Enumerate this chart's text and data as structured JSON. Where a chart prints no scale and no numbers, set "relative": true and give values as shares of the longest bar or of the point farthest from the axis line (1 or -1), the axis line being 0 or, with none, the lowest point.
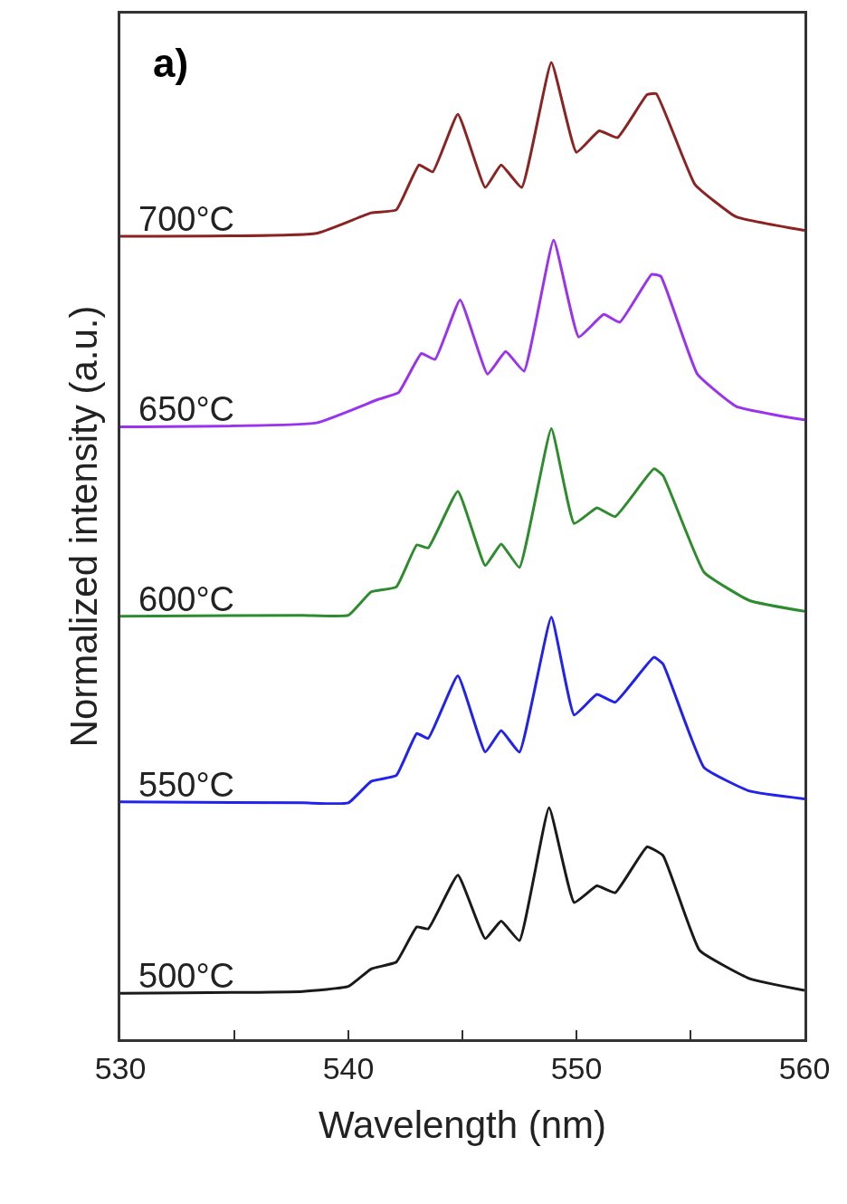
{
  "chart_data": {
    "type": "line",
    "relative": true,
    "xlabel": "Wavelength (nm)",
    "ylabel": "Normalized intensity (a.u.)",
    "annotations": [
      "a)"
    ],
    "xlim": [
      530,
      560
    ],
    "xticks": [
      530,
      {
        "value": 535,
        "label": null
      },
      540,
      {
        "value": 545,
        "label": null
      },
      550,
      {
        "value": 555,
        "label": null
      },
      560
    ],
    "tick_labels": "x",
    "legend": false,
    "line_style": "solid",
    "marker": "none",
    "series": [
      {
        "name": "500°C",
        "color": "#1a1a1a",
        "x": [
          530,
          538,
          540,
          541,
          542.1,
          543,
          543.5,
          544.8,
          546,
          546.7,
          547.5,
          548.8,
          549.9,
          550.9,
          551.7,
          553.1,
          553.8,
          555.4,
          557.6,
          560
        ],
        "values": [
          0.047,
          0.049,
          0.054,
          0.072,
          0.079,
          0.115,
          0.113,
          0.168,
          0.103,
          0.121,
          0.101,
          0.237,
          0.14,
          0.157,
          0.15,
          0.197,
          0.188,
          0.091,
          0.062,
          0.05
        ]
      },
      {
        "name": "550°C",
        "color": "#2222ee",
        "x": [
          530,
          538,
          540,
          541,
          542.1,
          543,
          543.5,
          544.8,
          546,
          546.7,
          547.5,
          548.9,
          549.9,
          550.9,
          551.7,
          553.4,
          553.8,
          555.6,
          557.6,
          560
        ],
        "values": [
          0.243,
          0.242,
          0.242,
          0.264,
          0.27,
          0.313,
          0.308,
          0.372,
          0.294,
          0.316,
          0.294,
          0.432,
          0.332,
          0.353,
          0.345,
          0.391,
          0.384,
          0.278,
          0.254,
          0.246
        ]
      },
      {
        "name": "600°C",
        "color": "#2e8b2e",
        "x": [
          530,
          538,
          540,
          541,
          542.1,
          543,
          543.5,
          544.8,
          546,
          546.7,
          547.5,
          548.9,
          549.9,
          550.9,
          551.7,
          553.4,
          553.8,
          555.6,
          557.6,
          560
        ],
        "values": [
          0.433,
          0.434,
          0.434,
          0.458,
          0.463,
          0.506,
          0.503,
          0.561,
          0.485,
          0.507,
          0.483,
          0.625,
          0.528,
          0.544,
          0.535,
          0.584,
          0.577,
          0.478,
          0.449,
          0.438
        ]
      },
      {
        "name": "650°C",
        "color": "#9933ee",
        "x": [
          530,
          538.6,
          541.3,
          542.2,
          543.2,
          543.8,
          544.9,
          546.1,
          546.9,
          547.7,
          549,
          550.1,
          551.2,
          551.9,
          553.3,
          553.7,
          555.3,
          557,
          560
        ],
        "values": [
          0.627,
          0.631,
          0.655,
          0.662,
          0.702,
          0.696,
          0.757,
          0.681,
          0.704,
          0.684,
          0.818,
          0.719,
          0.742,
          0.734,
          0.783,
          0.781,
          0.681,
          0.648,
          0.634
        ]
      },
      {
        "name": "700°C",
        "color": "#8b2323",
        "x": [
          530,
          538.6,
          541,
          542.1,
          543.1,
          543.7,
          544.8,
          546,
          546.7,
          547.6,
          548.9,
          550,
          551,
          551.8,
          553.1,
          553.5,
          555.2,
          557,
          560
        ],
        "values": [
          0.822,
          0.825,
          0.846,
          0.849,
          0.895,
          0.888,
          0.947,
          0.872,
          0.895,
          0.872,
          1.0,
          0.908,
          0.93,
          0.923,
          0.967,
          0.968,
          0.875,
          0.842,
          0.828
        ]
      }
    ]
  }
}
